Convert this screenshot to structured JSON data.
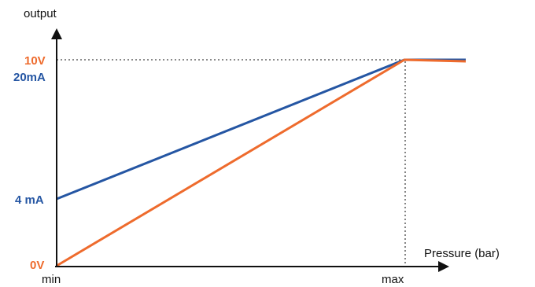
{
  "colors": {
    "axis": "#111111",
    "voltage": "#ee6b2d",
    "current": "#2556a3",
    "guide": "#444444"
  },
  "axes": {
    "y_label": "output",
    "x_label": "Pressure (bar)",
    "x_min_label": "min",
    "x_max_label": "max"
  },
  "levels": {
    "v_max": "10V",
    "ma_max": "20mA",
    "ma_min": "4 mA",
    "v_min": "0V"
  }
}
